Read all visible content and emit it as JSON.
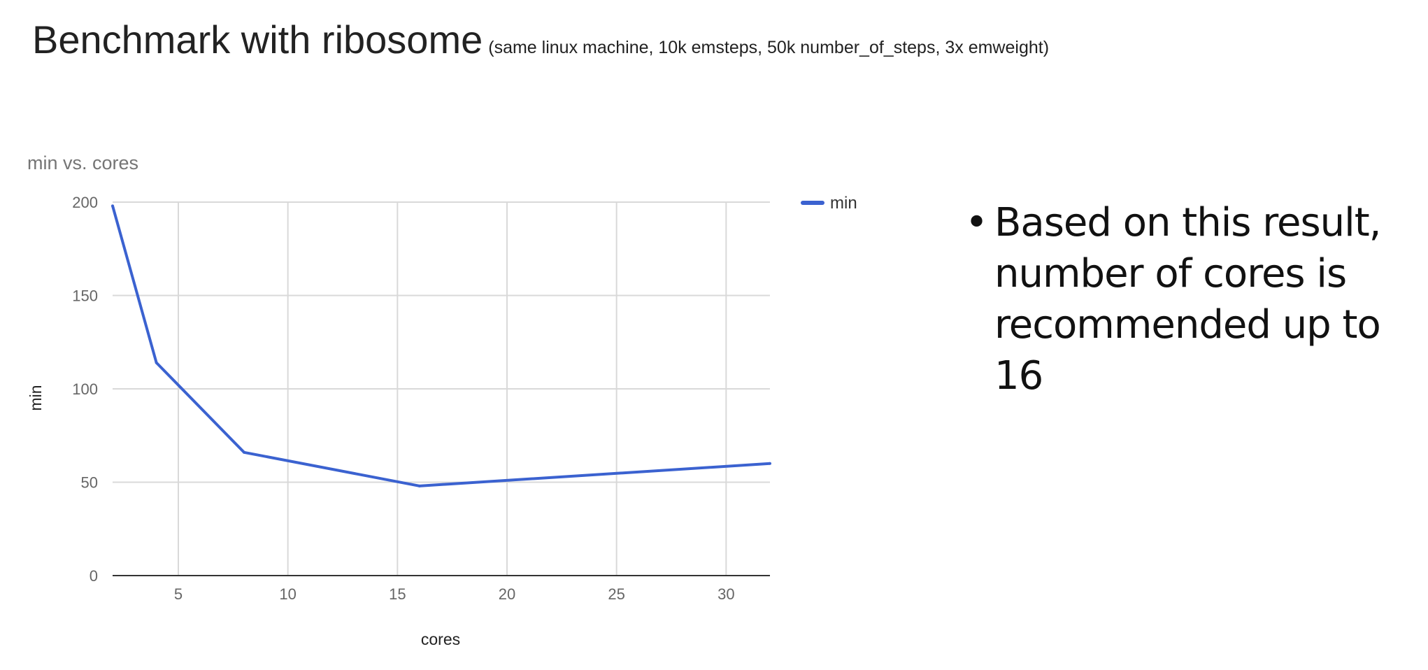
{
  "slide": {
    "title": "Benchmark with ribosome",
    "subtitle": "(same linux machine, 10k emsteps, 50k number_of_steps, 3x emweight)",
    "bullets": [
      "Based on this result, number of cores is recommended up to 16"
    ]
  },
  "chart_data": {
    "type": "line",
    "title": "min vs. cores",
    "xlabel": "cores",
    "ylabel": "min",
    "x": [
      2,
      4,
      8,
      16,
      32
    ],
    "series": [
      {
        "name": "min",
        "values": [
          198,
          114,
          66,
          48,
          60
        ],
        "color": "#3b62d0"
      }
    ],
    "xlim": [
      2,
      32
    ],
    "ylim": [
      0,
      200
    ],
    "xticks": [
      5,
      10,
      15,
      20,
      25,
      30
    ],
    "yticks": [
      0,
      50,
      100,
      150,
      200
    ],
    "grid": true,
    "legend": "top-right"
  }
}
